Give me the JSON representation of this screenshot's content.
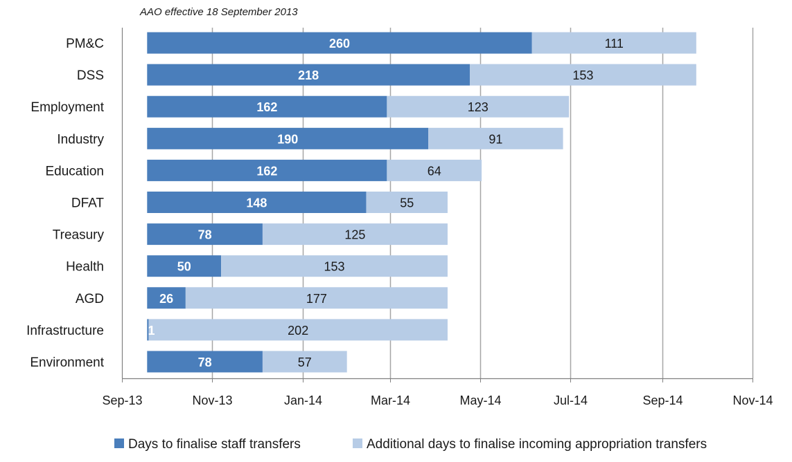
{
  "chart_data": {
    "type": "bar",
    "orientation": "horizontal",
    "stacked": true,
    "subtitle": "AAO effective 18 September 2013",
    "start_date": "18 September 2013",
    "categories": [
      "PM&C",
      "DSS",
      "Employment",
      "Industry",
      "Education",
      "DFAT",
      "Treasury",
      "Health",
      "AGD",
      "Infrastructure",
      "Environment"
    ],
    "series": [
      {
        "name": "Days to finalise staff transfers",
        "color": "#4a7ebb",
        "values": [
          260,
          218,
          162,
          190,
          162,
          148,
          78,
          50,
          26,
          1,
          78
        ]
      },
      {
        "name": "Additional days to finalise incoming appropriation transfers",
        "color": "#b7cce6",
        "values": [
          111,
          153,
          123,
          91,
          64,
          55,
          125,
          153,
          177,
          202,
          57
        ]
      }
    ],
    "x_tick_labels": [
      "Sep-13",
      "Nov-13",
      "Jan-14",
      "Mar-14",
      "May-14",
      "Jul-14",
      "Sep-14",
      "Nov-14"
    ],
    "xlim": [
      "Sep-13",
      "Nov-14"
    ],
    "grid": {
      "vertical": true,
      "horizontal": false
    },
    "legend_position": "bottom"
  }
}
